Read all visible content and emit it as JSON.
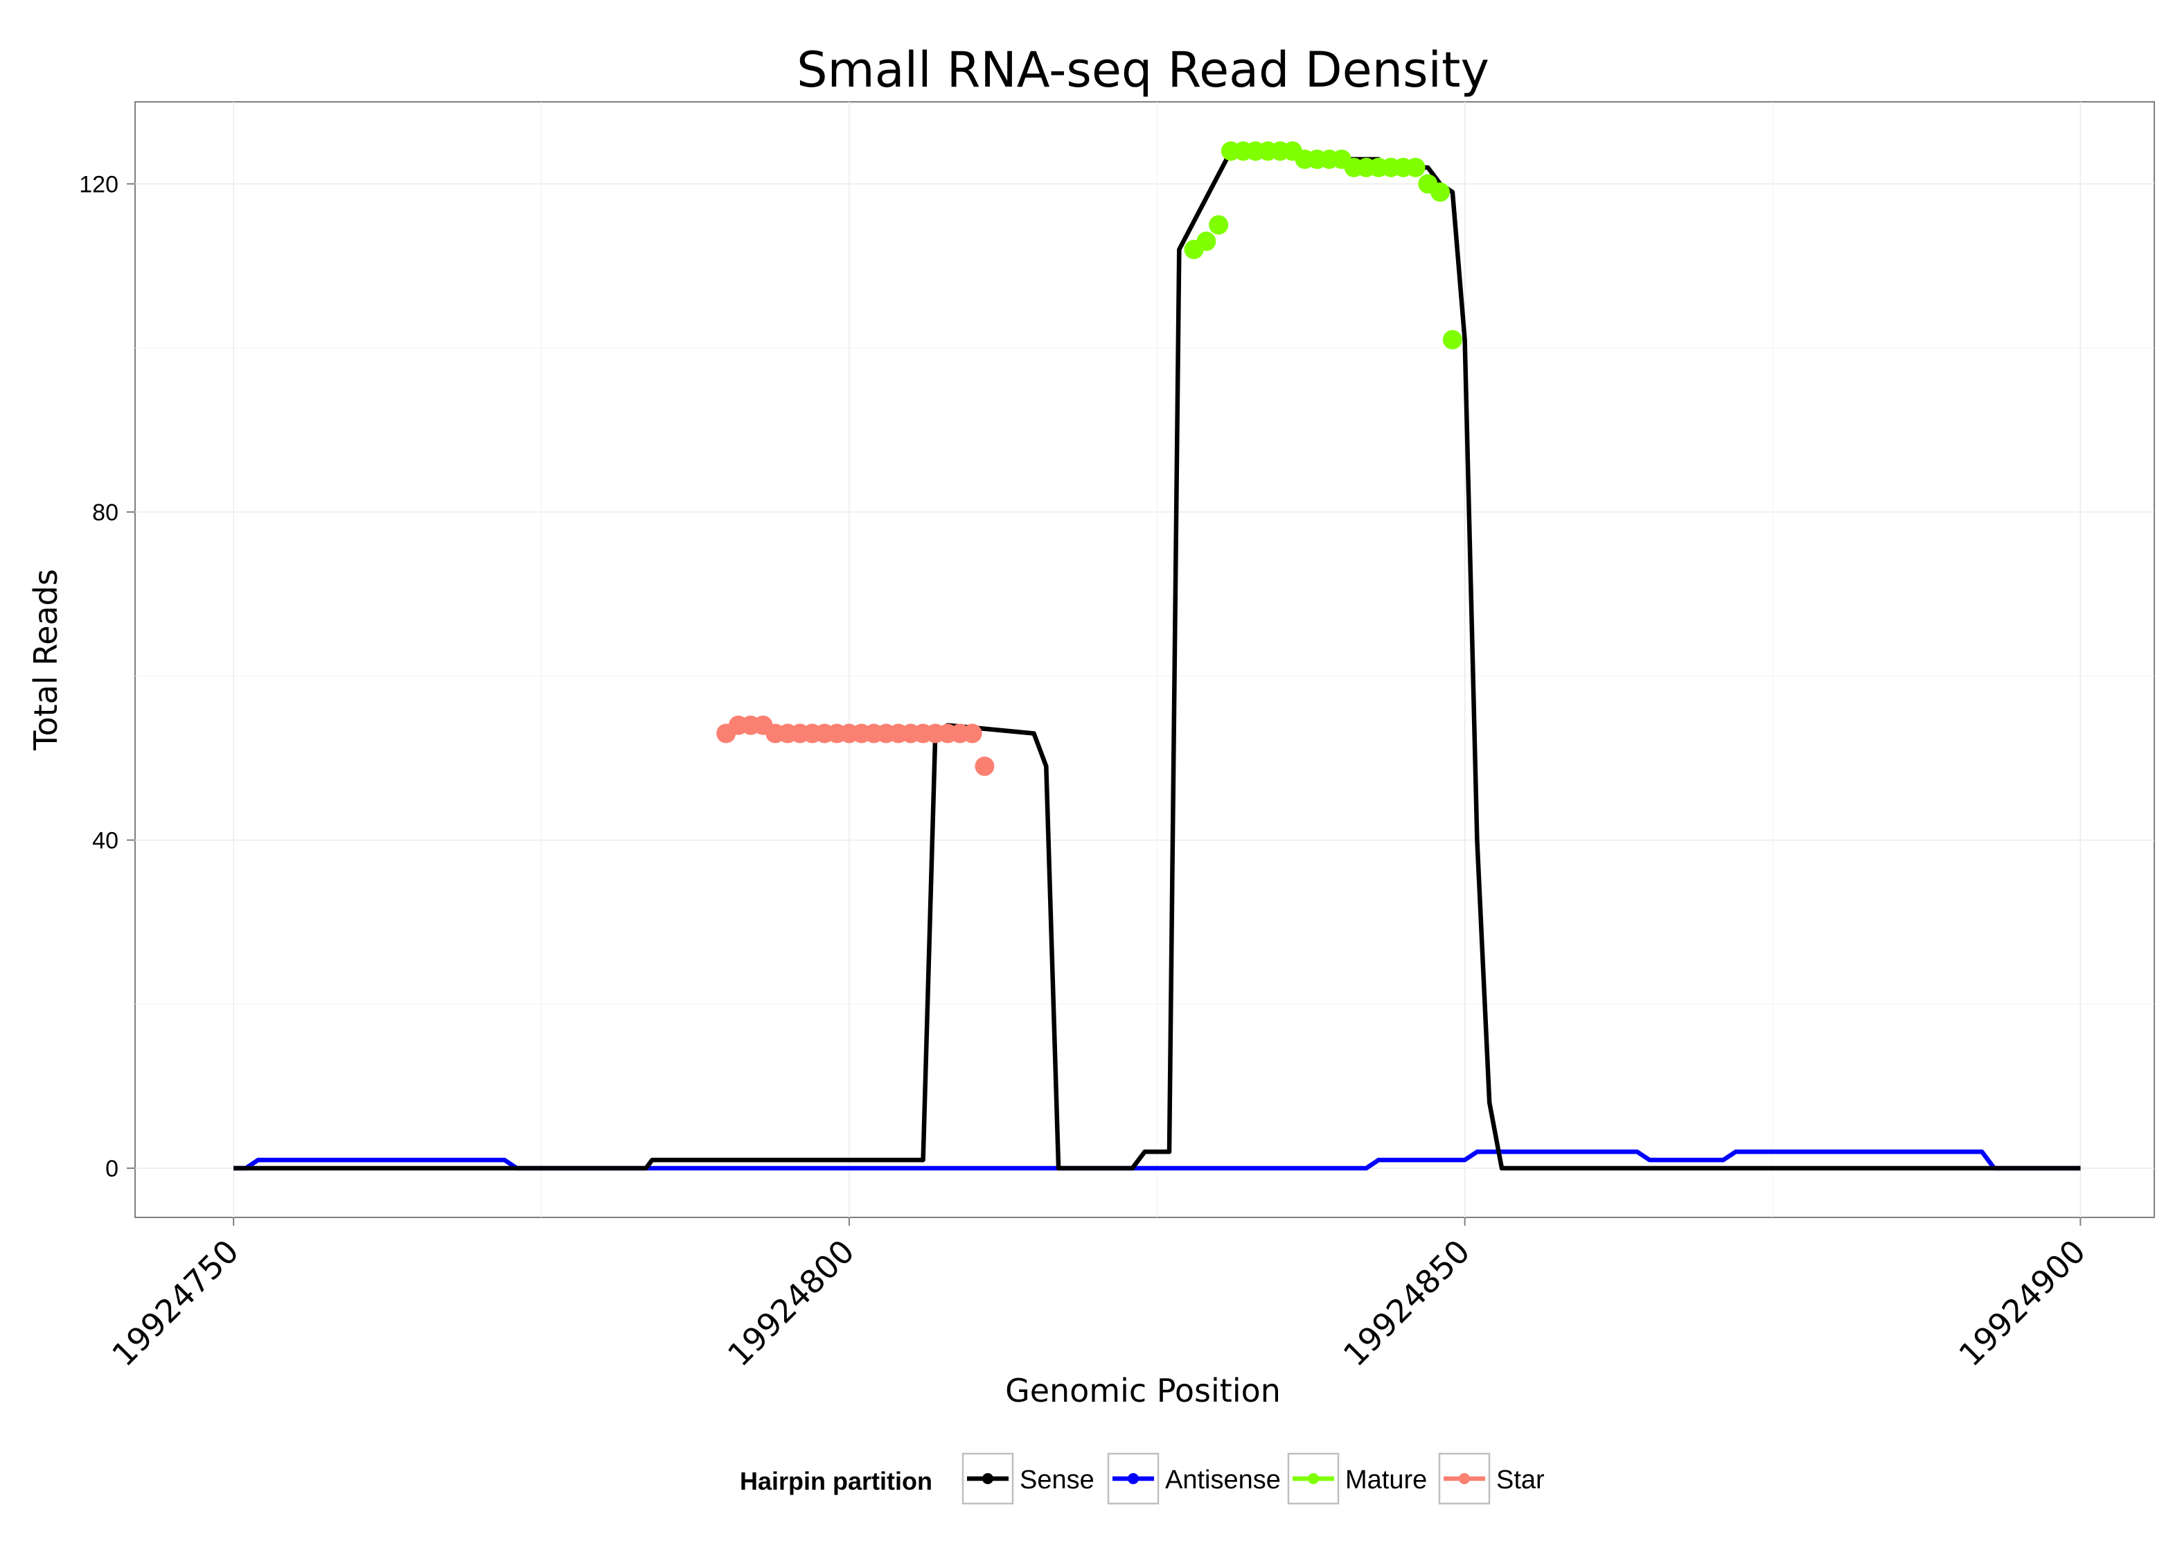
{
  "chart_data": {
    "type": "line",
    "title": "Small RNA-seq Read Density",
    "xlabel": "Genomic Position",
    "ylabel": "Total Reads",
    "xlim": [
      19924742,
      19924906
    ],
    "ylim": [
      -6,
      130
    ],
    "xticks": [
      19924750,
      19924800,
      19924850,
      19924900
    ],
    "xtick_labels": [
      "19924750",
      "19924800",
      "19924850",
      "19924900"
    ],
    "yticks": [
      0,
      40,
      80,
      120
    ],
    "ytick_labels": [
      "0",
      "40",
      "80",
      "120"
    ],
    "legend": {
      "title": "Hairpin partition",
      "position": "bottom",
      "entries": [
        {
          "key": "sense",
          "label": "Sense",
          "color": "#000000"
        },
        {
          "key": "antisense",
          "label": "Antisense",
          "color": "#0000ff"
        },
        {
          "key": "mature",
          "label": "Mature",
          "color": "#7fff00"
        },
        {
          "key": "star",
          "label": "Star",
          "color": "#fa8072"
        }
      ]
    },
    "series": [
      {
        "name": "Sense",
        "key": "sense",
        "color": "#000000",
        "mode": "line",
        "x": [
          19924750,
          19924783,
          19924783.5,
          19924784,
          19924799,
          19924800,
          19924806,
          19924807,
          19924808,
          19924815,
          19924816,
          19924817,
          19924823,
          19924824,
          19924825,
          19924826,
          19924826.8,
          19924831,
          19924832,
          19924836,
          19924837,
          19924843,
          19924844,
          19924847,
          19924848,
          19924849,
          19924850,
          19924851,
          19924852,
          19924853,
          19924900
        ],
        "y": [
          0,
          0,
          0,
          1,
          1,
          1,
          1,
          53,
          54,
          53,
          49,
          0,
          0,
          2,
          2,
          2,
          112,
          124,
          124,
          124,
          123,
          123,
          122,
          122,
          120,
          119,
          101,
          40,
          8,
          0,
          0
        ]
      },
      {
        "name": "Antisense",
        "key": "antisense",
        "color": "#0000ff",
        "mode": "line",
        "x": [
          19924750,
          19924751,
          19924752,
          19924772,
          19924773,
          19924822,
          19924842,
          19924843,
          19924850,
          19924851,
          19924864,
          19924865,
          19924871,
          19924872,
          19924892,
          19924893,
          19924900
        ],
        "y": [
          0,
          0,
          1,
          1,
          0,
          0,
          0,
          1,
          1,
          2,
          2,
          1,
          1,
          2,
          2,
          0,
          0
        ]
      },
      {
        "name": "Mature",
        "key": "mature",
        "color": "#7fff00",
        "mode": "points",
        "x": [
          19924828,
          19924829,
          19924830,
          19924831,
          19924832,
          19924833,
          19924834,
          19924835,
          19924836,
          19924837,
          19924838,
          19924839,
          19924840,
          19924841,
          19924842,
          19924843,
          19924844,
          19924845,
          19924846,
          19924847,
          19924848,
          19924849
        ],
        "y": [
          112,
          113,
          115,
          124,
          124,
          124,
          124,
          124,
          124,
          123,
          123,
          123,
          123,
          122,
          122,
          122,
          122,
          122,
          122,
          120,
          119,
          101
        ]
      },
      {
        "name": "Star",
        "key": "star",
        "color": "#fa8072",
        "mode": "points",
        "x": [
          19924790,
          19924791,
          19924792,
          19924793,
          19924794,
          19924795,
          19924796,
          19924797,
          19924798,
          19924799,
          19924800,
          19924801,
          19924802,
          19924803,
          19924804,
          19924805,
          19924806,
          19924807,
          19924808,
          19924809,
          19924810,
          19924811
        ],
        "y": [
          53,
          54,
          54,
          54,
          53,
          53,
          53,
          53,
          53,
          53,
          53,
          53,
          53,
          53,
          53,
          53,
          53,
          53,
          53,
          53,
          53,
          49
        ]
      }
    ]
  }
}
